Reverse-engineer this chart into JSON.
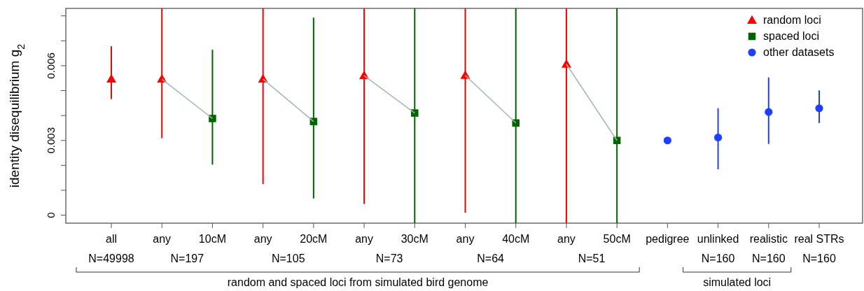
{
  "chart_data": {
    "type": "scatter",
    "ylabel": "identity disequilibrium g$_{2}$",
    "categories": [
      "all",
      "any",
      "10cM",
      "any",
      "20cM",
      "any",
      "30cM",
      "any",
      "40cM",
      "any",
      "50cM",
      "pedigree",
      "unlinked",
      "realistic",
      "real STRs"
    ],
    "ylim": [
      -0.00032,
      0.0083
    ],
    "yticks": [
      0,
      {
        "value": 0.001,
        "label": null
      },
      {
        "value": 0.002,
        "label": null
      },
      {
        "value": 0.003,
        "label": "0.003"
      },
      {
        "value": 0.004,
        "label": null
      },
      {
        "value": 0.005,
        "label": null
      },
      {
        "value": 0.006,
        "label": "0.006"
      },
      {
        "value": 0.007,
        "label": null
      },
      {
        "value": 0.008,
        "label": null
      }
    ],
    "legend": "top right",
    "grid": false,
    "annotations": [
      "N=49998",
      "N=197",
      "N=105",
      "N=73",
      "N=64",
      "N=51",
      "N=160",
      "N=160",
      "N=160",
      "random and spaced loci from simulated bird genome",
      "simulated loci"
    ],
    "series": [
      {
        "type": "line",
        "color": "#a3b8b0",
        "marker": "none",
        "values": [
          null,
          0.00546,
          0.00388,
          null,
          null,
          null,
          null,
          null,
          null,
          null,
          null,
          null,
          null,
          null,
          null
        ]
      },
      {
        "type": "line",
        "color": "#a3b8b0",
        "marker": "none",
        "values": [
          null,
          null,
          null,
          0.00546,
          0.00376,
          null,
          null,
          null,
          null,
          null,
          null,
          null,
          null,
          null,
          null
        ]
      },
      {
        "type": "line",
        "color": "#a3b8b0",
        "marker": "none",
        "values": [
          null,
          null,
          null,
          null,
          null,
          0.0056,
          0.0041,
          null,
          null,
          null,
          null,
          null,
          null,
          null,
          null
        ]
      },
      {
        "type": "line",
        "color": "#a3b8b0",
        "marker": "none",
        "values": [
          null,
          null,
          null,
          null,
          null,
          null,
          null,
          0.00561,
          0.0037,
          null,
          null,
          null,
          null,
          null,
          null
        ]
      },
      {
        "type": "line",
        "color": "#a3b8b0",
        "marker": "none",
        "values": [
          null,
          null,
          null,
          null,
          null,
          null,
          null,
          null,
          null,
          0.00606,
          0.003,
          null,
          null,
          null,
          null
        ]
      },
      {
        "name": "random loci",
        "color": "#ff0000",
        "marker": "triangle",
        "values": [
          0.00546,
          0.00546,
          null,
          0.00546,
          null,
          0.0056,
          null,
          0.00561,
          null,
          0.00606,
          null,
          null,
          null,
          null,
          null
        ],
        "errors": [
          [
            0.00466,
            0.00678
          ],
          [
            0.00309,
            0.0083
          ],
          null,
          [
            0.00125,
            0.0083
          ],
          null,
          [
            0.00045,
            0.0083
          ],
          null,
          [
            0.0001,
            0.0083
          ],
          null,
          [
            -0.00032,
            0.0083
          ],
          null,
          null,
          null,
          null,
          null
        ]
      },
      {
        "name": "spaced loci",
        "color": "#006400",
        "marker": "square",
        "values": [
          null,
          null,
          0.00388,
          null,
          0.00376,
          null,
          0.0041,
          null,
          0.0037,
          null,
          0.003,
          null,
          null,
          null,
          null
        ],
        "errors": [
          null,
          null,
          [
            0.00203,
            0.00664
          ],
          null,
          [
            0.00067,
            0.00793
          ],
          null,
          [
            -0.00032,
            0.0083
          ],
          null,
          [
            -0.00032,
            0.0083
          ],
          null,
          [
            -0.00032,
            0.0083
          ],
          null,
          null,
          null,
          null
        ]
      },
      {
        "name": "other datasets",
        "color": "#1f3fff",
        "marker": "circle",
        "values": [
          null,
          null,
          null,
          null,
          null,
          null,
          null,
          null,
          null,
          null,
          null,
          0.003,
          0.00312,
          0.00414,
          0.00429
        ],
        "errors": [
          null,
          null,
          null,
          null,
          null,
          null,
          null,
          null,
          null,
          null,
          null,
          null,
          [
            0.00184,
            0.00429
          ],
          [
            0.00286,
            0.00553
          ],
          [
            0.0037,
            0.00501
          ]
        ]
      }
    ]
  }
}
